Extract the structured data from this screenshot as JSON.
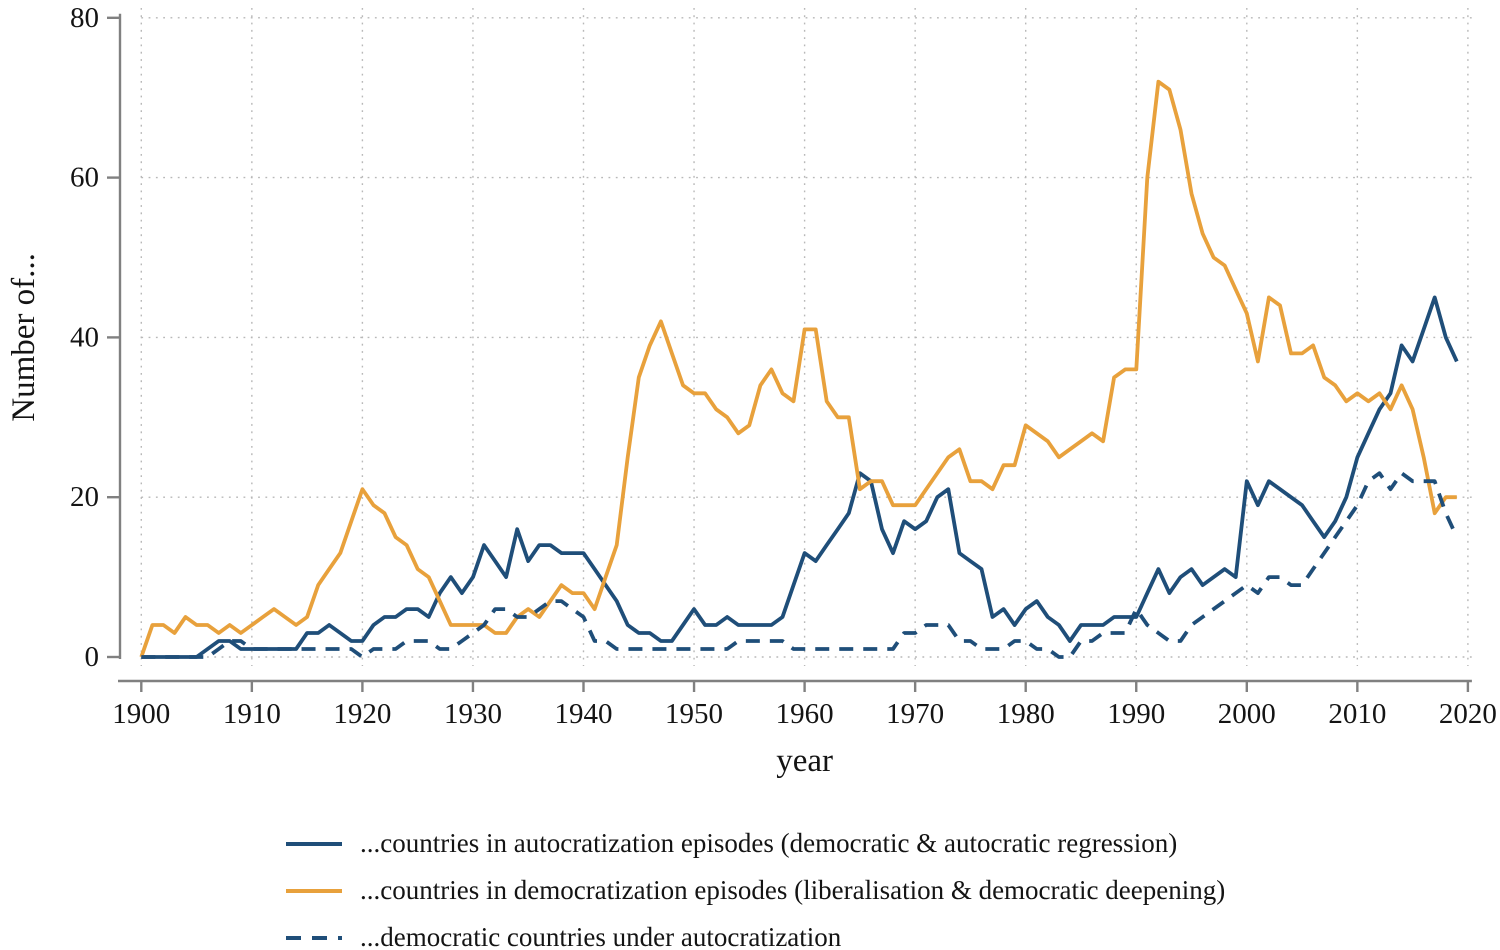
{
  "chart_data": {
    "type": "line",
    "title": "",
    "xlabel": "year",
    "ylabel": "Number of...",
    "xlim": [
      1900,
      2020
    ],
    "ylim": [
      0,
      80
    ],
    "x_ticks": [
      1900,
      1910,
      1920,
      1930,
      1940,
      1950,
      1960,
      1970,
      1980,
      1990,
      2000,
      2010,
      2020
    ],
    "y_ticks": [
      0,
      20,
      40,
      60,
      80
    ],
    "grid": "dotted both axes",
    "legend_position": "bottom-left",
    "x": [
      1900,
      1901,
      1902,
      1903,
      1904,
      1905,
      1906,
      1907,
      1908,
      1909,
      1910,
      1911,
      1912,
      1913,
      1914,
      1915,
      1916,
      1917,
      1918,
      1919,
      1920,
      1921,
      1922,
      1923,
      1924,
      1925,
      1926,
      1927,
      1928,
      1929,
      1930,
      1931,
      1932,
      1933,
      1934,
      1935,
      1936,
      1937,
      1938,
      1939,
      1940,
      1941,
      1942,
      1943,
      1944,
      1945,
      1946,
      1947,
      1948,
      1949,
      1950,
      1951,
      1952,
      1953,
      1954,
      1955,
      1956,
      1957,
      1958,
      1959,
      1960,
      1961,
      1962,
      1963,
      1964,
      1965,
      1966,
      1967,
      1968,
      1969,
      1970,
      1971,
      1972,
      1973,
      1974,
      1975,
      1976,
      1977,
      1978,
      1979,
      1980,
      1981,
      1982,
      1983,
      1984,
      1985,
      1986,
      1987,
      1988,
      1989,
      1990,
      1991,
      1992,
      1993,
      1994,
      1995,
      1996,
      1997,
      1998,
      1999,
      2000,
      2001,
      2002,
      2003,
      2004,
      2005,
      2006,
      2007,
      2008,
      2009,
      2010,
      2011,
      2012,
      2013,
      2014,
      2015,
      2016,
      2017,
      2018,
      2019
    ],
    "series": [
      {
        "name": "autocratization_episodes",
        "label": "...countries in autocratization episodes (democratic & autocratic regression)",
        "color": "#1f4e79",
        "style": "solid",
        "values": [
          0,
          0,
          0,
          0,
          0,
          0,
          1,
          2,
          2,
          1,
          1,
          1,
          1,
          1,
          1,
          3,
          3,
          4,
          3,
          2,
          2,
          4,
          5,
          5,
          6,
          6,
          5,
          8,
          10,
          8,
          10,
          14,
          12,
          10,
          16,
          12,
          14,
          14,
          13,
          13,
          13,
          11,
          9,
          7,
          4,
          3,
          3,
          2,
          2,
          4,
          6,
          4,
          4,
          5,
          4,
          4,
          4,
          4,
          5,
          9,
          13,
          12,
          14,
          16,
          18,
          23,
          22,
          16,
          13,
          17,
          16,
          17,
          20,
          21,
          13,
          12,
          11,
          5,
          6,
          4,
          6,
          7,
          5,
          4,
          2,
          4,
          4,
          4,
          5,
          5,
          5,
          8,
          11,
          8,
          10,
          11,
          9,
          10,
          11,
          10,
          22,
          19,
          22,
          21,
          20,
          19,
          17,
          15,
          17,
          20,
          25,
          28,
          31,
          33,
          39,
          37,
          41,
          45,
          40,
          37
        ]
      },
      {
        "name": "democratization_episodes",
        "label": "...countries in democratization episodes (liberalisation & democratic deepening)",
        "color": "#e8a13c",
        "style": "solid",
        "values": [
          0,
          4,
          4,
          3,
          5,
          4,
          4,
          3,
          4,
          3,
          4,
          5,
          6,
          5,
          4,
          5,
          9,
          11,
          13,
          17,
          21,
          19,
          18,
          15,
          14,
          11,
          10,
          7,
          4,
          4,
          4,
          4,
          3,
          3,
          5,
          6,
          5,
          7,
          9,
          8,
          8,
          6,
          10,
          14,
          25,
          35,
          39,
          42,
          38,
          34,
          33,
          33,
          31,
          30,
          28,
          29,
          34,
          36,
          33,
          32,
          41,
          41,
          32,
          30,
          30,
          21,
          22,
          22,
          19,
          19,
          19,
          21,
          23,
          25,
          26,
          22,
          22,
          21,
          24,
          24,
          29,
          28,
          27,
          25,
          26,
          27,
          28,
          27,
          35,
          36,
          36,
          60,
          72,
          71,
          66,
          58,
          53,
          50,
          49,
          46,
          43,
          37,
          45,
          44,
          38,
          38,
          39,
          35,
          34,
          32,
          33,
          32,
          33,
          31,
          34,
          31,
          25,
          18,
          20,
          20
        ]
      },
      {
        "name": "democratic_countries_under_autocratization",
        "label": "...democratic countries under autocratization",
        "color": "#1f4e79",
        "style": "dashed",
        "values": [
          0,
          0,
          0,
          0,
          0,
          0,
          0,
          1,
          2,
          2,
          1,
          1,
          1,
          1,
          1,
          1,
          1,
          1,
          1,
          1,
          0,
          1,
          1,
          1,
          2,
          2,
          2,
          1,
          1,
          2,
          3,
          4,
          6,
          6,
          5,
          5,
          6,
          7,
          7,
          6,
          5,
          2,
          2,
          1,
          1,
          1,
          1,
          1,
          1,
          1,
          1,
          1,
          1,
          1,
          2,
          2,
          2,
          2,
          2,
          1,
          1,
          1,
          1,
          1,
          1,
          1,
          1,
          1,
          1,
          3,
          3,
          4,
          4,
          4,
          2,
          2,
          1,
          1,
          1,
          2,
          2,
          1,
          1,
          0,
          0,
          2,
          2,
          3,
          3,
          3,
          6,
          4,
          3,
          2,
          2,
          4,
          5,
          6,
          7,
          8,
          9,
          8,
          10,
          10,
          9,
          9,
          11,
          13,
          15,
          17,
          19,
          22,
          23,
          21,
          23,
          22,
          22,
          22,
          18,
          15
        ]
      }
    ]
  },
  "axes": {
    "y_title": "Number of...",
    "x_title": "year"
  },
  "legend": {
    "items": [
      {
        "label": "...countries in autocratization episodes (democratic & autocratic regression)"
      },
      {
        "label": "...countries in democratization episodes (liberalisation & democratic deepening)"
      },
      {
        "label": "...democratic countries under autocratization"
      }
    ]
  },
  "colors": {
    "blue": "#1f4e79",
    "orange": "#e8a13c",
    "axis": "#808080",
    "grid": "#b8b8b8",
    "text": "#141414"
  }
}
